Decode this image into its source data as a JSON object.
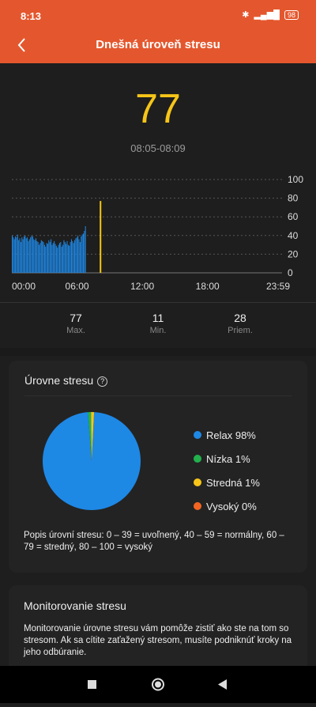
{
  "status": {
    "time": "8:13",
    "battery": "98"
  },
  "header": {
    "title": "Dnešná úroveň stresu"
  },
  "current": {
    "value": "77",
    "range": "08:05-08:09"
  },
  "chart_data": {
    "type": "bar",
    "x_ticks": [
      "00:00",
      "06:00",
      "12:00",
      "18:00",
      "23:59"
    ],
    "y_ticks": [
      "100",
      "80",
      "60",
      "40",
      "20",
      "0"
    ],
    "ylim": [
      0,
      100
    ],
    "values_00_to_0650": [
      40,
      38,
      36,
      39,
      38,
      41,
      35,
      37,
      33,
      38,
      36,
      39,
      40,
      37,
      38,
      34,
      36,
      38,
      40,
      39,
      36,
      35,
      37,
      34,
      33,
      30,
      32,
      35,
      34,
      33,
      30,
      28,
      32,
      31,
      35,
      33,
      36,
      30,
      32,
      34,
      31,
      29,
      27,
      30,
      32,
      33,
      28,
      30,
      35,
      33,
      31,
      34,
      30,
      29,
      33,
      36,
      34,
      32,
      35,
      37,
      38,
      40,
      36,
      33,
      39,
      41,
      42,
      45,
      50
    ],
    "highlight": {
      "time": "08:05",
      "value": 77,
      "color": "#f5c518"
    },
    "bar_color": "#1e88e5"
  },
  "stats": [
    {
      "value": "77",
      "label": "Max."
    },
    {
      "value": "11",
      "label": "Min."
    },
    {
      "value": "28",
      "label": "Priem."
    }
  ],
  "levels_card": {
    "title": "Úrovne stresu",
    "legend": [
      {
        "label": "Relax 98%",
        "color": "#1e88e5",
        "pct": 98
      },
      {
        "label": "Nízka 1%",
        "color": "#22b14c",
        "pct": 1
      },
      {
        "label": "Stredná 1%",
        "color": "#f5c518",
        "pct": 1
      },
      {
        "label": "Vysoký 0%",
        "color": "#f26522",
        "pct": 0
      }
    ],
    "description": "Popis úrovní stresu: 0 – 39 = uvoľnený, 40 – 59 = normálny, 60 – 79 = stredný, 80 – 100 = vysoký"
  },
  "monitor_card": {
    "title": "Monitorovanie stresu",
    "text": "Monitorovanie úrovne stresu vám pomôže zistiť ako ste na tom so stresom. Ak sa cítite zaťažený stresom, musíte podniknúť kroky na jeho odbúranie."
  }
}
